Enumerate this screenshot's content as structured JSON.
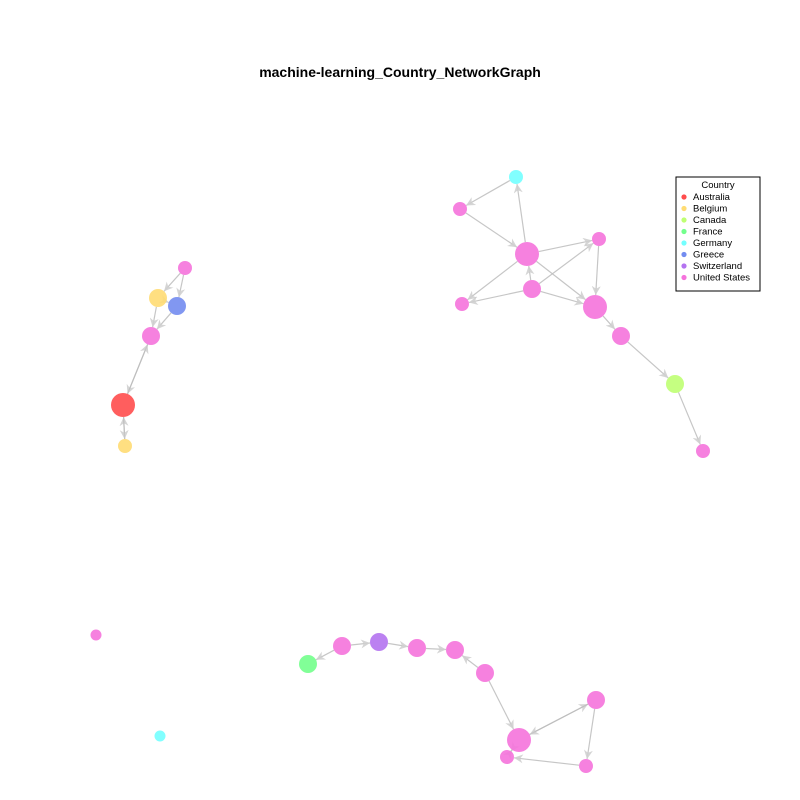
{
  "title": "machine-learning_Country_NetworkGraph",
  "legend": {
    "title": "Country",
    "items": [
      {
        "label": "Australia",
        "color": "#ff4c4c"
      },
      {
        "label": "Belgium",
        "color": "#ffdc73"
      },
      {
        "label": "Canada",
        "color": "#bfff73"
      },
      {
        "label": "France",
        "color": "#73ff8c"
      },
      {
        "label": "Germany",
        "color": "#73ffff"
      },
      {
        "label": "Greece",
        "color": "#738cf0"
      },
      {
        "label": "Switzerland",
        "color": "#b473f0"
      },
      {
        "label": "United States",
        "color": "#f573dc"
      }
    ]
  },
  "edge_color": "#bdbdbd",
  "nodes": [
    {
      "id": 1,
      "country": "United States",
      "size": "small"
    },
    {
      "id": 2,
      "country": "Belgium",
      "size": "medium"
    },
    {
      "id": 3,
      "country": "Greece",
      "size": "medium"
    },
    {
      "id": 4,
      "country": "United States",
      "size": "medium"
    },
    {
      "id": 5,
      "country": "Australia",
      "size": "large"
    },
    {
      "id": 6,
      "country": "Belgium",
      "size": "small"
    },
    {
      "id": 7,
      "country": "Germany",
      "size": "small"
    },
    {
      "id": 8,
      "country": "United States",
      "size": "small"
    },
    {
      "id": 9,
      "country": "United States",
      "size": "large"
    },
    {
      "id": 10,
      "country": "United States",
      "size": "small"
    },
    {
      "id": 11,
      "country": "United States",
      "size": "small"
    },
    {
      "id": 12,
      "country": "United States",
      "size": "medium"
    },
    {
      "id": 13,
      "country": "United States",
      "size": "large"
    },
    {
      "id": 14,
      "country": "United States",
      "size": "medium"
    },
    {
      "id": 15,
      "country": "Canada",
      "size": "medium"
    },
    {
      "id": 16,
      "country": "United States",
      "size": "small"
    },
    {
      "id": 17,
      "country": "United States",
      "size": "tiny"
    },
    {
      "id": 18,
      "country": "Germany",
      "size": "tiny"
    },
    {
      "id": 19,
      "country": "France",
      "size": "medium"
    },
    {
      "id": 20,
      "country": "United States",
      "size": "medium"
    },
    {
      "id": 21,
      "country": "Switzerland",
      "size": "medium"
    },
    {
      "id": 22,
      "country": "United States",
      "size": "medium"
    },
    {
      "id": 23,
      "country": "United States",
      "size": "medium"
    },
    {
      "id": 24,
      "country": "United States",
      "size": "medium"
    },
    {
      "id": 25,
      "country": "United States",
      "size": "large"
    },
    {
      "id": 26,
      "country": "United States",
      "size": "small"
    },
    {
      "id": 27,
      "country": "United States",
      "size": "medium"
    },
    {
      "id": 28,
      "country": "United States",
      "size": "small"
    }
  ],
  "edges": [
    [
      1,
      2
    ],
    [
      1,
      3
    ],
    [
      2,
      3
    ],
    [
      2,
      4
    ],
    [
      3,
      4
    ],
    [
      4,
      5
    ],
    [
      5,
      4
    ],
    [
      6,
      5
    ],
    [
      5,
      6
    ],
    [
      9,
      7
    ],
    [
      7,
      8
    ],
    [
      8,
      9
    ],
    [
      9,
      10
    ],
    [
      9,
      11
    ],
    [
      12,
      11
    ],
    [
      12,
      9
    ],
    [
      12,
      10
    ],
    [
      9,
      13
    ],
    [
      10,
      13
    ],
    [
      12,
      13
    ],
    [
      13,
      14
    ],
    [
      14,
      15
    ],
    [
      15,
      16
    ],
    [
      20,
      19
    ],
    [
      20,
      21
    ],
    [
      21,
      22
    ],
    [
      22,
      23
    ],
    [
      24,
      23
    ],
    [
      24,
      25
    ],
    [
      25,
      26
    ],
    [
      26,
      25
    ],
    [
      25,
      27
    ],
    [
      27,
      28
    ],
    [
      28,
      26
    ],
    [
      27,
      25
    ]
  ]
}
